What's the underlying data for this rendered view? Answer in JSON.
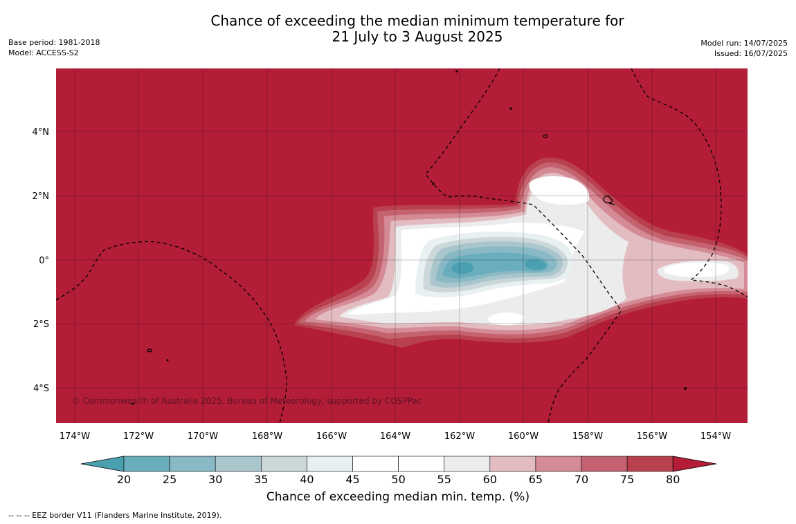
{
  "title": {
    "line1": "Chance of exceeding the median minimum temperature for",
    "line2": "21 July to 3 August 2025"
  },
  "meta_left": {
    "base_period": "Base period: 1981-2018",
    "model": "Model: ACCESS-S2"
  },
  "meta_right": {
    "model_run": "Model run: 14/07/2025",
    "issued": "Issued: 16/07/2025"
  },
  "map": {
    "lon_range": [
      -174.6,
      -153.0
    ],
    "lat_range": [
      -5.1,
      5.8
    ],
    "lon_ticks": [
      "174°W",
      "172°W",
      "170°W",
      "168°W",
      "166°W",
      "164°W",
      "162°W",
      "160°W",
      "158°W",
      "156°W",
      "154°W"
    ],
    "lat_ticks": [
      "4°N",
      "2°N",
      "0°",
      "2°S",
      "4°S"
    ],
    "copyright": "© Commonwealth of Australia 2025, Bureau of Meteorology, supported by COSPPac"
  },
  "colorbar": {
    "labels": [
      "20",
      "25",
      "30",
      "35",
      "40",
      "45",
      "50",
      "55",
      "60",
      "65",
      "70",
      "75",
      "80"
    ],
    "colors": [
      "#4a9fb0",
      "#6aaebd",
      "#8ab9c6",
      "#a9c6cd",
      "#ccd7da",
      "#e9f0f1",
      "#ffffff",
      "#ffffff",
      "#ececec",
      "#e2bcc1",
      "#d48b95",
      "#c4636f",
      "#b9404f",
      "#b31d38"
    ],
    "title": "Chance of exceeding median min. temp. (%)"
  },
  "eez_note": "--  --  -- EEZ border V11 (Flanders Marine Institute, 2019)."
}
